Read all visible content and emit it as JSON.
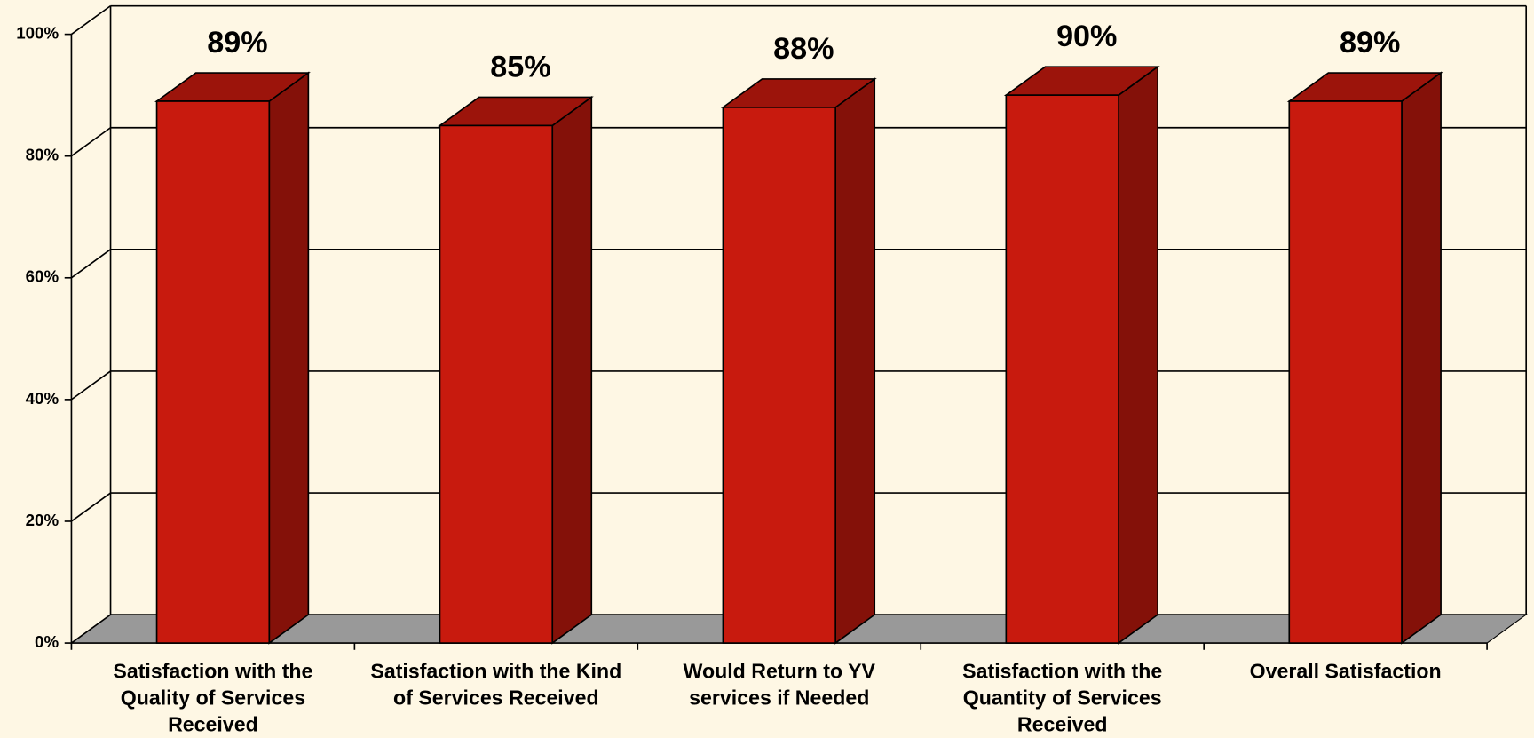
{
  "chart_data": {
    "type": "bar3d",
    "categories": [
      "Satisfaction with the Quality of Services Received",
      "Satisfaction with the Kind of Services Received",
      "Would Return to YV services if Needed",
      "Satisfaction with the Quantity of Services Received",
      "Overall Satisfaction"
    ],
    "values": [
      89,
      85,
      88,
      90,
      89
    ],
    "value_labels": [
      "89%",
      "85%",
      "88%",
      "90%",
      "89%"
    ],
    "color": "#c81a0e",
    "ylim": [
      0,
      100
    ],
    "yticks": [
      {
        "value": 0,
        "label": "0%"
      },
      {
        "value": 20,
        "label": "20%"
      },
      {
        "value": 40,
        "label": "40%"
      },
      {
        "value": 60,
        "label": "60%"
      },
      {
        "value": 80,
        "label": "80%"
      },
      {
        "value": 100,
        "label": "100%"
      }
    ],
    "grid": true
  }
}
